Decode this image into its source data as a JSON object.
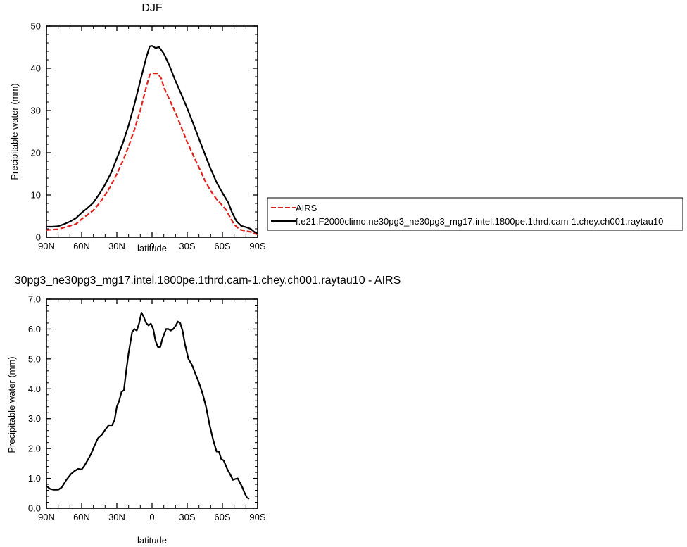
{
  "colors": {
    "airs": "#e0201b",
    "model": "#000000"
  },
  "chart_data": [
    {
      "type": "line",
      "title": "DJF",
      "xlabel": "latitude",
      "ylabel": "Precipitable water (mm)",
      "xlim": [
        90,
        -90
      ],
      "ylim": [
        0,
        50
      ],
      "xticks": [
        90,
        60,
        30,
        0,
        -30,
        -60,
        -90
      ],
      "xtick_labels": [
        "90N",
        "60N",
        "30N",
        "0",
        "30S",
        "60S",
        "90S"
      ],
      "yticks": [
        0,
        10,
        20,
        30,
        40,
        50
      ],
      "ytick_labels": [
        "0",
        "10",
        "20",
        "30",
        "40",
        "50"
      ],
      "legend": "outside-right",
      "series": [
        {
          "name": "AIRS",
          "color": "#e0201b",
          "dash": "dashed",
          "points": [
            [
              90,
              1.7
            ],
            [
              85,
              1.8
            ],
            [
              80,
              1.9
            ],
            [
              75,
              2.3
            ],
            [
              70,
              2.7
            ],
            [
              65,
              3.1
            ],
            [
              60,
              4.3
            ],
            [
              55,
              5.3
            ],
            [
              50,
              6.4
            ],
            [
              45,
              8.0
            ],
            [
              40,
              10.0
            ],
            [
              35,
              12.3
            ],
            [
              30,
              15.0
            ],
            [
              25,
              18.0
            ],
            [
              20,
              21.5
            ],
            [
              15,
              25.5
            ],
            [
              10,
              30.0
            ],
            [
              5,
              35.5
            ],
            [
              2,
              38.5
            ],
            [
              0,
              38.8
            ],
            [
              -5,
              38.8
            ],
            [
              -8,
              37.5
            ],
            [
              -10,
              35.5
            ],
            [
              -15,
              32.5
            ],
            [
              -20,
              29.5
            ],
            [
              -25,
              26.0
            ],
            [
              -30,
              22.5
            ],
            [
              -35,
              19.5
            ],
            [
              -40,
              16.5
            ],
            [
              -45,
              13.5
            ],
            [
              -50,
              11.0
            ],
            [
              -55,
              9.0
            ],
            [
              -60,
              7.5
            ],
            [
              -63,
              6.5
            ],
            [
              -66,
              5.0
            ],
            [
              -70,
              3.0
            ],
            [
              -75,
              1.8
            ],
            [
              -80,
              1.5
            ],
            [
              -85,
              1.2
            ],
            [
              -88,
              0.8
            ],
            [
              -90,
              0.7
            ]
          ]
        },
        {
          "name": "f.e21.F2000climo.ne30pg3_ne30pg3_mg17.intel.1800pe.1thrd.cam-1.chey.ch001.raytau10",
          "color": "#000000",
          "dash": "solid",
          "points": [
            [
              90,
              2.5
            ],
            [
              85,
              2.5
            ],
            [
              80,
              2.6
            ],
            [
              75,
              3.1
            ],
            [
              70,
              3.7
            ],
            [
              65,
              4.5
            ],
            [
              60,
              5.8
            ],
            [
              55,
              6.9
            ],
            [
              50,
              8.2
            ],
            [
              45,
              10.2
            ],
            [
              40,
              12.5
            ],
            [
              35,
              15.2
            ],
            [
              30,
              18.7
            ],
            [
              25,
              22.2
            ],
            [
              20,
              26.5
            ],
            [
              15,
              31.5
            ],
            [
              10,
              37.0
            ],
            [
              5,
              42.5
            ],
            [
              2,
              45.2
            ],
            [
              0,
              45.3
            ],
            [
              -3,
              44.8
            ],
            [
              -6,
              45.0
            ],
            [
              -10,
              43.5
            ],
            [
              -15,
              40.5
            ],
            [
              -20,
              37.0
            ],
            [
              -25,
              33.8
            ],
            [
              -30,
              30.5
            ],
            [
              -35,
              27.0
            ],
            [
              -40,
              23.3
            ],
            [
              -45,
              19.7
            ],
            [
              -50,
              16.2
            ],
            [
              -55,
              13.0
            ],
            [
              -60,
              10.5
            ],
            [
              -65,
              8.2
            ],
            [
              -68,
              6.0
            ],
            [
              -72,
              3.8
            ],
            [
              -76,
              2.7
            ],
            [
              -80,
              2.4
            ],
            [
              -84,
              2.0
            ],
            [
              -87,
              1.3
            ],
            [
              -90,
              0.9
            ]
          ]
        }
      ]
    },
    {
      "type": "line",
      "title": "30pg3_ne30pg3_mg17.intel.1800pe.1thrd.cam-1.chey.ch001.raytau10 - AIRS",
      "xlabel": "latitude",
      "ylabel": "Precipitable water (mm)",
      "xlim": [
        90,
        -90
      ],
      "ylim": [
        0,
        7
      ],
      "xticks": [
        90,
        60,
        30,
        0,
        -30,
        -60,
        -90
      ],
      "xtick_labels": [
        "90N",
        "60N",
        "30N",
        "0",
        "30S",
        "60S",
        "90S"
      ],
      "yticks": [
        0,
        1,
        2,
        3,
        4,
        5,
        6,
        7
      ],
      "ytick_labels": [
        "0.0",
        "1.0",
        "2.0",
        "3.0",
        "4.0",
        "5.0",
        "6.0",
        "7.0"
      ],
      "series": [
        {
          "color": "#000000",
          "dash": "solid",
          "points": [
            [
              90,
              0.75
            ],
            [
              87,
              0.65
            ],
            [
              84,
              0.62
            ],
            [
              80,
              0.62
            ],
            [
              77,
              0.7
            ],
            [
              73,
              0.95
            ],
            [
              69,
              1.15
            ],
            [
              66,
              1.25
            ],
            [
              63,
              1.32
            ],
            [
              60,
              1.3
            ],
            [
              58,
              1.4
            ],
            [
              55,
              1.6
            ],
            [
              52,
              1.82
            ],
            [
              49,
              2.1
            ],
            [
              46,
              2.35
            ],
            [
              43,
              2.45
            ],
            [
              40,
              2.62
            ],
            [
              37,
              2.78
            ],
            [
              34,
              2.78
            ],
            [
              32,
              2.95
            ],
            [
              30,
              3.4
            ],
            [
              28,
              3.6
            ],
            [
              26,
              3.9
            ],
            [
              24,
              3.95
            ],
            [
              22,
              4.6
            ],
            [
              20,
              5.2
            ],
            [
              17,
              5.9
            ],
            [
              15,
              6.0
            ],
            [
              13,
              5.95
            ],
            [
              11,
              6.2
            ],
            [
              9,
              6.55
            ],
            [
              7,
              6.4
            ],
            [
              5,
              6.2
            ],
            [
              3,
              6.12
            ],
            [
              1,
              6.18
            ],
            [
              -1,
              6.0
            ],
            [
              -3,
              5.6
            ],
            [
              -5,
              5.4
            ],
            [
              -7,
              5.4
            ],
            [
              -9,
              5.7
            ],
            [
              -12,
              6.0
            ],
            [
              -14,
              6.0
            ],
            [
              -16,
              5.95
            ],
            [
              -18,
              6.0
            ],
            [
              -20,
              6.1
            ],
            [
              -22,
              6.25
            ],
            [
              -24,
              6.2
            ],
            [
              -26,
              5.95
            ],
            [
              -28,
              5.5
            ],
            [
              -31,
              5.0
            ],
            [
              -34,
              4.8
            ],
            [
              -37,
              4.5
            ],
            [
              -40,
              4.2
            ],
            [
              -43,
              3.85
            ],
            [
              -46,
              3.4
            ],
            [
              -49,
              2.8
            ],
            [
              -52,
              2.3
            ],
            [
              -55,
              1.9
            ],
            [
              -57,
              1.9
            ],
            [
              -59,
              1.65
            ],
            [
              -61,
              1.6
            ],
            [
              -64,
              1.32
            ],
            [
              -67,
              1.1
            ],
            [
              -69,
              0.95
            ],
            [
              -71,
              0.98
            ],
            [
              -73,
              1.0
            ],
            [
              -75,
              0.85
            ],
            [
              -77,
              0.7
            ],
            [
              -79,
              0.5
            ],
            [
              -81,
              0.35
            ],
            [
              -83,
              0.32
            ]
          ]
        }
      ]
    }
  ]
}
